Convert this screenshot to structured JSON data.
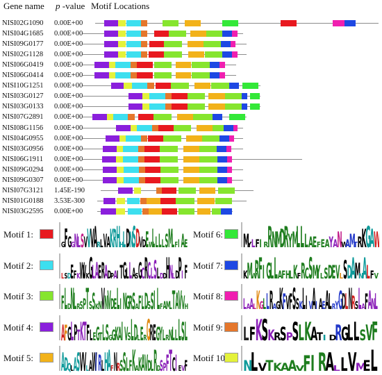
{
  "header": {
    "gene_name": "Gene name",
    "p_label": "p",
    "p_suffix": " -value",
    "motif_locations": "Motif Locations"
  },
  "motif_colors": {
    "1": "#e8191f",
    "2": "#3ddfef",
    "3": "#86e52e",
    "4": "#8a1fdc",
    "5": "#f2b21a",
    "6": "#33e838",
    "7": "#1e48e3",
    "8": "#f01fb0",
    "9": "#e5772c",
    "10": "#e4f23a"
  },
  "legend": [
    {
      "label": "Motif 1:",
      "motif": 1,
      "logo_letters": "GFGGNLSVVVARLVAKRHHLDNSDVDEWLLLLSMLFIAE"
    },
    {
      "label": "Motif 2:",
      "motif": 2,
      "logo_letters": "LSDEFKWVKGLAERADPAITGLLASGCRCLSLDDHNLDPIF"
    },
    {
      "label": "Motif 3:",
      "motif": 3,
      "logo_letters": "FLDNLRSPTSSKNVNVDELINGRSAFLDSSILFAMLTAVVH"
    },
    {
      "label": "Motif 4:",
      "motif": 4,
      "logo_letters": "AFGLPTKTFLEGTLSGGKAIVSLDLERGREGYLRNLLLSL"
    },
    {
      "label": "Motif 5:",
      "motif": 5,
      "logo_letters": "ADQLASVVLAWIRLHAFNRSSLFKAKAVDLRDSPFTCIEVF"
    },
    {
      "label": "Motif 6:",
      "motif": 6,
      "logo_letters": "MYLFIRRNMDRYMLLLAEFEAYANWAMTRKGAW"
    },
    {
      "label": "Motif 7:",
      "motif": 7,
      "logo_letters": "KMWRFIGLLAFHLKFRCSMYLSDEVLSDAMNALFV"
    },
    {
      "label": "Motif 8:",
      "motif": 8,
      "logo_letters": "LAALKGLLRAGKFVFSSKLIVAIAEALRYGDLNRSLAFANL"
    },
    {
      "label": "Motif 9:",
      "motif": 9,
      "logo_letters": "LFKSKRSPSLKATIDRGLLSVF"
    },
    {
      "label": "Motif 10:",
      "motif": 10,
      "logo_letters": "NLVTKAAVFIRALLVMEL"
    }
  ],
  "genes": [
    {
      "name": "NISI02G1090",
      "p": "0.00E+00",
      "extent": [
        137,
        545
      ],
      "motifs": [
        [
          4,
          150,
          170
        ],
        [
          10,
          170,
          181
        ],
        [
          2,
          182,
          203
        ],
        [
          9,
          203,
          212
        ],
        [
          3,
          234,
          257
        ],
        [
          5,
          266,
          289
        ],
        [
          6,
          320,
          343
        ],
        [
          1,
          404,
          427
        ],
        [
          8,
          479,
          496
        ],
        [
          7,
          496,
          512
        ]
      ]
    },
    {
      "name": "NISI04G1685",
      "p": "0.00E+00",
      "extent": [
        119,
        350
      ],
      "motifs": [
        [
          4,
          150,
          170
        ],
        [
          10,
          170,
          181
        ],
        [
          2,
          182,
          203
        ],
        [
          9,
          203,
          212
        ],
        [
          1,
          222,
          243
        ],
        [
          3,
          243,
          268
        ],
        [
          5,
          274,
          297
        ],
        [
          3,
          297,
          320
        ],
        [
          7,
          320,
          334
        ],
        [
          8,
          334,
          342
        ]
      ]
    },
    {
      "name": "NISI09G0177",
      "p": "0.00E+00",
      "extent": [
        119,
        355
      ],
      "motifs": [
        [
          4,
          150,
          170
        ],
        [
          10,
          170,
          181
        ],
        [
          2,
          182,
          203
        ],
        [
          9,
          203,
          212
        ],
        [
          1,
          215,
          236
        ],
        [
          3,
          236,
          262
        ],
        [
          5,
          270,
          293
        ],
        [
          3,
          293,
          318
        ],
        [
          7,
          318,
          332
        ],
        [
          8,
          332,
          339
        ]
      ]
    },
    {
      "name": "NISI02G1128",
      "p": "0.00E+00",
      "extent": [
        119,
        355
      ],
      "motifs": [
        [
          4,
          150,
          170
        ],
        [
          10,
          170,
          181
        ],
        [
          2,
          182,
          203
        ],
        [
          9,
          203,
          212
        ],
        [
          1,
          214,
          236
        ],
        [
          3,
          236,
          262
        ],
        [
          5,
          271,
          294
        ],
        [
          3,
          295,
          320
        ],
        [
          7,
          320,
          334
        ],
        [
          8,
          334,
          342
        ]
      ]
    },
    {
      "name": "NISI06G0419",
      "p": "0.00E+00",
      "extent": [
        119,
        340
      ],
      "motifs": [
        [
          4,
          136,
          157
        ],
        [
          10,
          157,
          166
        ],
        [
          2,
          166,
          188
        ],
        [
          9,
          188,
          197
        ],
        [
          1,
          197,
          220
        ],
        [
          3,
          222,
          247
        ],
        [
          5,
          253,
          275
        ],
        [
          3,
          276,
          302
        ],
        [
          7,
          302,
          316
        ],
        [
          8,
          316,
          324
        ]
      ]
    },
    {
      "name": "NISI06G0414",
      "p": "0.00E+00",
      "extent": [
        119,
        340
      ],
      "motifs": [
        [
          4,
          136,
          157
        ],
        [
          10,
          157,
          166
        ],
        [
          2,
          166,
          188
        ],
        [
          9,
          188,
          197
        ],
        [
          1,
          197,
          220
        ],
        [
          3,
          222,
          247
        ],
        [
          5,
          253,
          275
        ],
        [
          3,
          276,
          302
        ],
        [
          7,
          302,
          316
        ],
        [
          8,
          316,
          324
        ]
      ]
    },
    {
      "name": "NISI10G1251",
      "p": "0.00E+00",
      "extent": [
        119,
        375
      ],
      "motifs": [
        [
          4,
          160,
          178
        ],
        [
          10,
          178,
          190
        ],
        [
          2,
          190,
          212
        ],
        [
          9,
          212,
          222
        ],
        [
          1,
          224,
          246
        ],
        [
          3,
          246,
          272
        ],
        [
          5,
          280,
          303
        ],
        [
          3,
          304,
          330
        ],
        [
          7,
          330,
          344
        ],
        [
          6,
          349,
          372
        ]
      ]
    },
    {
      "name": "NISI03G0127",
      "p": "0.00E+00",
      "extent": [
        119,
        375
      ],
      "motifs": [
        [
          4,
          185,
          205
        ],
        [
          10,
          205,
          215
        ],
        [
          2,
          215,
          238
        ],
        [
          9,
          238,
          247
        ],
        [
          1,
          247,
          270
        ],
        [
          3,
          270,
          295
        ],
        [
          5,
          300,
          324
        ],
        [
          3,
          324,
          348
        ],
        [
          7,
          348,
          356
        ],
        [
          6,
          360,
          374
        ]
      ]
    },
    {
      "name": "NISI03G0133",
      "p": "0.00E+00",
      "extent": [
        119,
        375
      ],
      "motifs": [
        [
          4,
          185,
          205
        ],
        [
          10,
          205,
          215
        ],
        [
          2,
          215,
          238
        ],
        [
          9,
          238,
          247
        ],
        [
          1,
          247,
          270
        ],
        [
          3,
          270,
          295
        ],
        [
          5,
          300,
          324
        ],
        [
          3,
          324,
          348
        ],
        [
          7,
          348,
          356
        ],
        [
          6,
          360,
          374
        ]
      ]
    },
    {
      "name": "NISI07G2891",
      "p": "0.00E+00",
      "extent": [
        119,
        355
      ],
      "motifs": [
        [
          4,
          133,
          154
        ],
        [
          10,
          154,
          163
        ],
        [
          2,
          163,
          184
        ],
        [
          9,
          184,
          194
        ],
        [
          1,
          199,
          221
        ],
        [
          3,
          221,
          247
        ],
        [
          5,
          255,
          278
        ],
        [
          3,
          278,
          306
        ],
        [
          7,
          306,
          320
        ],
        [
          6,
          330,
          353
        ]
      ]
    },
    {
      "name": "NISI08G1156",
      "p": "0.00E+00",
      "extent": [
        119,
        350
      ],
      "motifs": [
        [
          4,
          167,
          188
        ],
        [
          10,
          188,
          197
        ],
        [
          2,
          197,
          219
        ],
        [
          9,
          219,
          228
        ],
        [
          1,
          228,
          250
        ],
        [
          3,
          250,
          275
        ],
        [
          5,
          283,
          306
        ],
        [
          3,
          306,
          322
        ],
        [
          7,
          322,
          336
        ],
        [
          8,
          336,
          342
        ]
      ]
    },
    {
      "name": "NISI04G0955",
      "p": "0.00E+00",
      "extent": [
        119,
        350
      ],
      "motifs": [
        [
          4,
          152,
          172
        ],
        [
          10,
          172,
          181
        ],
        [
          2,
          181,
          203
        ],
        [
          9,
          203,
          212
        ],
        [
          1,
          213,
          235
        ],
        [
          3,
          235,
          261
        ],
        [
          5,
          268,
          291
        ],
        [
          3,
          291,
          316
        ],
        [
          7,
          316,
          330
        ],
        [
          8,
          330,
          337
        ]
      ]
    },
    {
      "name": "NISI03G0956",
      "p": "0.00E+00",
      "extent": [
        119,
        350
      ],
      "motifs": [
        [
          4,
          148,
          168
        ],
        [
          10,
          168,
          177
        ],
        [
          2,
          177,
          199
        ],
        [
          9,
          199,
          208
        ],
        [
          1,
          208,
          230
        ],
        [
          3,
          230,
          256
        ],
        [
          5,
          264,
          287
        ],
        [
          3,
          287,
          312
        ],
        [
          7,
          312,
          326
        ],
        [
          8,
          326,
          333
        ]
      ]
    },
    {
      "name": "NISI06G1911",
      "p": "0.00E+00",
      "extent": [
        119,
        435
      ],
      "motifs": [
        [
          4,
          147,
          167
        ],
        [
          10,
          167,
          177
        ],
        [
          2,
          177,
          199
        ],
        [
          9,
          199,
          208
        ],
        [
          1,
          208,
          230
        ],
        [
          3,
          230,
          256
        ],
        [
          5,
          264,
          287
        ],
        [
          3,
          287,
          313
        ],
        [
          7,
          313,
          327
        ],
        [
          8,
          327,
          334
        ]
      ]
    },
    {
      "name": "NISI09G0294",
      "p": "0.00E+00",
      "extent": [
        119,
        350
      ],
      "motifs": [
        [
          4,
          148,
          168
        ],
        [
          10,
          168,
          178
        ],
        [
          2,
          178,
          200
        ],
        [
          9,
          200,
          209
        ],
        [
          1,
          209,
          231
        ],
        [
          3,
          231,
          257
        ],
        [
          5,
          264,
          287
        ],
        [
          3,
          287,
          313
        ],
        [
          7,
          313,
          327
        ],
        [
          8,
          327,
          334
        ]
      ]
    },
    {
      "name": "NISI09G0307",
      "p": "0.00E+00",
      "extent": [
        119,
        350
      ],
      "motifs": [
        [
          4,
          148,
          168
        ],
        [
          10,
          168,
          178
        ],
        [
          2,
          178,
          200
        ],
        [
          9,
          200,
          209
        ],
        [
          1,
          209,
          231
        ],
        [
          3,
          231,
          257
        ],
        [
          5,
          264,
          287
        ],
        [
          3,
          287,
          313
        ],
        [
          7,
          313,
          327
        ],
        [
          8,
          327,
          334
        ]
      ]
    },
    {
      "name": "NISI07G3121",
      "p": "1.45E-190",
      "extent": [
        145,
        365
      ],
      "motifs": [
        [
          4,
          170,
          191
        ],
        [
          10,
          193,
          203
        ],
        [
          9,
          225,
          233
        ],
        [
          1,
          233,
          254
        ],
        [
          3,
          257,
          282
        ],
        [
          5,
          287,
          310
        ],
        [
          3,
          314,
          338
        ]
      ]
    },
    {
      "name": "NISI01G0188",
      "p": "3.53E-300",
      "extent": [
        140,
        355
      ],
      "motifs": [
        [
          4,
          149,
          166
        ],
        [
          10,
          168,
          180
        ],
        [
          2,
          183,
          201
        ],
        [
          9,
          202,
          211
        ],
        [
          5,
          211,
          231
        ],
        [
          1,
          231,
          253
        ],
        [
          3,
          253,
          280
        ],
        [
          5,
          284,
          309
        ],
        [
          3,
          310,
          334
        ]
      ]
    },
    {
      "name": "NISI03G2595",
      "p": "0.00E+00",
      "extent": [
        140,
        335
      ],
      "motifs": [
        [
          4,
          145,
          167
        ],
        [
          10,
          167,
          180
        ],
        [
          2,
          184,
          204
        ],
        [
          9,
          205,
          214
        ],
        [
          5,
          214,
          233
        ],
        [
          1,
          233,
          255
        ],
        [
          3,
          257,
          280
        ],
        [
          5,
          284,
          303
        ],
        [
          3,
          305,
          318
        ],
        [
          7,
          318,
          334
        ]
      ]
    }
  ]
}
